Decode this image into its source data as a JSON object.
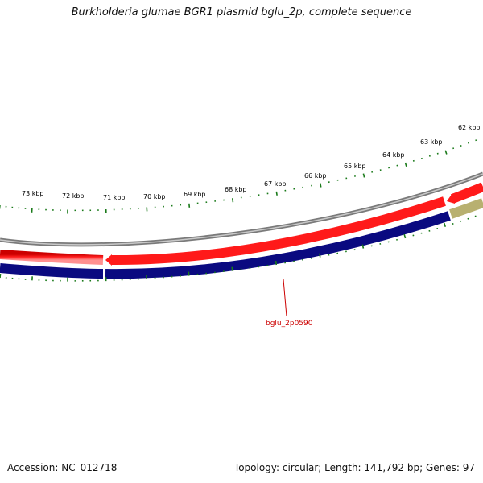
{
  "title": "Burkholderia glumae BGR1 plasmid bglu_2p, complete sequence",
  "accession_text": "Accession: NC_012718",
  "summary_text": "Topology: circular; Length: 141,792 bp; Genes: 97",
  "tick_labels": [
    "73 kbp",
    "72 kbp",
    "71 kbp",
    "70 kbp",
    "69 kbp",
    "68 kbp",
    "67 kbp",
    "66 kbp",
    "65 kbp",
    "64 kbp",
    "63 kbp",
    "62 kbp"
  ],
  "gene_label": "bglu_2p0590",
  "colors": {
    "forward_gene": "#ff1a1a",
    "reverse_gene": "#0a0a80",
    "gc_track": "#b8b070",
    "backbone": "#888888",
    "ticks": "#1a7a1a",
    "gene_label": "#cc0000"
  }
}
